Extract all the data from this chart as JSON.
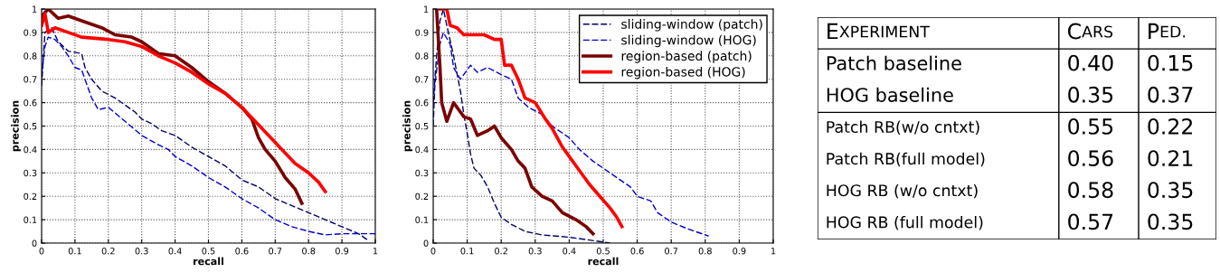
{
  "chart_data": [
    {
      "type": "line",
      "xlabel": "recall",
      "ylabel": "precision",
      "xlim": [
        0,
        1
      ],
      "ylim": [
        0,
        1
      ],
      "xticks": [
        0,
        0.1,
        0.2,
        0.3,
        0.4,
        0.5,
        0.6,
        0.7,
        0.8,
        0.9,
        1
      ],
      "yticks": [
        0,
        0.1,
        0.2,
        0.3,
        0.4,
        0.5,
        0.6,
        0.7,
        0.8,
        0.9,
        1
      ],
      "grid": true,
      "legend": false,
      "series": [
        {
          "color": "#000066",
          "line_style": "dashed",
          "x": [
            0,
            0.01,
            0.03,
            0.05,
            0.08,
            0.12,
            0.13,
            0.15,
            0.18,
            0.22,
            0.25,
            0.28,
            0.3,
            0.33,
            0.36,
            0.4,
            0.45,
            0.5,
            0.55,
            0.6,
            0.65,
            0.7,
            0.75,
            0.8,
            0.85,
            0.9,
            0.95,
            0.98
          ],
          "values": [
            0.67,
            0.9,
            0.92,
            0.86,
            0.82,
            0.81,
            0.75,
            0.7,
            0.65,
            0.62,
            0.59,
            0.56,
            0.53,
            0.51,
            0.48,
            0.46,
            0.41,
            0.37,
            0.33,
            0.27,
            0.24,
            0.19,
            0.16,
            0.13,
            0.1,
            0.07,
            0.04,
            0.01
          ]
        },
        {
          "color": "#0000cc",
          "line_style": "dashed",
          "x": [
            0,
            0.01,
            0.02,
            0.04,
            0.06,
            0.08,
            0.1,
            0.12,
            0.13,
            0.15,
            0.17,
            0.2,
            0.25,
            0.3,
            0.35,
            0.38,
            0.4,
            0.45,
            0.5,
            0.55,
            0.6,
            0.65,
            0.7,
            0.75,
            0.8,
            0.85,
            0.9,
            0.95,
            1
          ],
          "values": [
            0.72,
            0.84,
            0.88,
            0.87,
            0.84,
            0.8,
            0.75,
            0.74,
            0.7,
            0.62,
            0.57,
            0.58,
            0.52,
            0.46,
            0.42,
            0.4,
            0.37,
            0.33,
            0.28,
            0.24,
            0.19,
            0.15,
            0.1,
            0.07,
            0.05,
            0.035,
            0.04,
            0.04,
            0.04
          ]
        },
        {
          "color": "#7a0000",
          "line_style": "solid",
          "x": [
            0,
            0.02,
            0.05,
            0.08,
            0.12,
            0.18,
            0.22,
            0.27,
            0.3,
            0.35,
            0.4,
            0.45,
            0.5,
            0.55,
            0.6,
            0.63,
            0.65,
            0.67,
            0.7,
            0.73,
            0.76,
            0.78
          ],
          "values": [
            0.97,
            1.0,
            0.96,
            0.97,
            0.95,
            0.92,
            0.89,
            0.88,
            0.86,
            0.81,
            0.8,
            0.75,
            0.69,
            0.64,
            0.58,
            0.53,
            0.45,
            0.4,
            0.35,
            0.28,
            0.23,
            0.17
          ]
        },
        {
          "color": "#ff0000",
          "line_style": "solid",
          "x": [
            0,
            0.01,
            0.02,
            0.04,
            0.08,
            0.12,
            0.2,
            0.25,
            0.3,
            0.35,
            0.4,
            0.45,
            0.5,
            0.55,
            0.6,
            0.64,
            0.68,
            0.72,
            0.76,
            0.8,
            0.83,
            0.85
          ],
          "values": [
            0.93,
            0.98,
            0.9,
            0.92,
            0.9,
            0.88,
            0.87,
            0.86,
            0.84,
            0.8,
            0.77,
            0.73,
            0.68,
            0.64,
            0.58,
            0.52,
            0.46,
            0.4,
            0.34,
            0.3,
            0.26,
            0.22
          ]
        }
      ]
    },
    {
      "type": "line",
      "xlabel": "recall",
      "ylabel": "precision",
      "xlim": [
        0,
        1
      ],
      "ylim": [
        0,
        1
      ],
      "xticks": [
        0,
        0.1,
        0.2,
        0.3,
        0.4,
        0.5,
        0.6,
        0.7,
        0.8,
        0.9,
        1
      ],
      "yticks": [
        0,
        0.1,
        0.2,
        0.3,
        0.4,
        0.5,
        0.6,
        0.7,
        0.8,
        0.9,
        1
      ],
      "grid": true,
      "legend": "top right",
      "series": [
        {
          "name": "sliding-window (patch)",
          "color": "#000066",
          "line_style": "dashed",
          "x": [
            0,
            0.01,
            0.02,
            0.03,
            0.04,
            0.06,
            0.08,
            0.09,
            0.1,
            0.11,
            0.12,
            0.14,
            0.16,
            0.18,
            0.2,
            0.23,
            0.27,
            0.32,
            0.4,
            0.45,
            0.52
          ],
          "values": [
            0.6,
            0.8,
            0.95,
            1.0,
            0.93,
            0.8,
            0.65,
            0.55,
            0.47,
            0.38,
            0.32,
            0.29,
            0.24,
            0.17,
            0.11,
            0.08,
            0.05,
            0.035,
            0.025,
            0.015,
            0.0
          ]
        },
        {
          "name": "sliding-window (HOG)",
          "color": "#0000cc",
          "line_style": "dashed",
          "x": [
            0,
            0.005,
            0.02,
            0.03,
            0.05,
            0.06,
            0.08,
            0.11,
            0.13,
            0.16,
            0.2,
            0.23,
            0.25,
            0.28,
            0.32,
            0.35,
            0.4,
            0.43,
            0.47,
            0.5,
            0.55,
            0.58,
            0.6,
            0.64,
            0.66,
            0.7,
            0.75,
            0.81
          ],
          "values": [
            0.5,
            0.68,
            0.85,
            0.9,
            0.85,
            0.75,
            0.7,
            0.76,
            0.73,
            0.75,
            0.72,
            0.7,
            0.62,
            0.58,
            0.55,
            0.5,
            0.45,
            0.4,
            0.35,
            0.32,
            0.27,
            0.24,
            0.2,
            0.18,
            0.13,
            0.09,
            0.06,
            0.03
          ]
        },
        {
          "name": "region-based (patch)",
          "color": "#7a0000",
          "line_style": "solid",
          "x": [
            0.01,
            0.02,
            0.025,
            0.04,
            0.06,
            0.09,
            0.11,
            0.13,
            0.16,
            0.18,
            0.2,
            0.23,
            0.25,
            0.27,
            0.29,
            0.32,
            0.35,
            0.38,
            0.42,
            0.45,
            0.47
          ],
          "values": [
            1.0,
            0.75,
            0.6,
            0.52,
            0.6,
            0.54,
            0.53,
            0.46,
            0.48,
            0.5,
            0.45,
            0.4,
            0.35,
            0.32,
            0.24,
            0.2,
            0.18,
            0.13,
            0.1,
            0.07,
            0.04
          ]
        },
        {
          "name": "region-based (HOG)",
          "color": "#ff0000",
          "line_style": "solid",
          "x": [
            0.02,
            0.04,
            0.05,
            0.07,
            0.09,
            0.12,
            0.15,
            0.18,
            0.2,
            0.21,
            0.23,
            0.25,
            0.27,
            0.3,
            0.33,
            0.35,
            0.38,
            0.4,
            0.43,
            0.46,
            0.49,
            0.52,
            0.54,
            0.555
          ],
          "values": [
            1.0,
            1.0,
            0.93,
            0.92,
            0.89,
            0.89,
            0.89,
            0.87,
            0.87,
            0.76,
            0.76,
            0.7,
            0.62,
            0.6,
            0.53,
            0.49,
            0.41,
            0.37,
            0.31,
            0.25,
            0.2,
            0.15,
            0.11,
            0.07
          ]
        }
      ]
    },
    {
      "type": "other",
      "xlabel": "EXPERIMENT",
      "categories": [
        "Patch baseline",
        "HOG baseline",
        "Patch RB(w/o cntxt)",
        "Patch RB(full model)",
        "HOG RB (w/o cntxt)",
        "HOG RB (full model)"
      ],
      "series": [
        {
          "name": "CARS",
          "values": [
            0.4,
            0.35,
            0.55,
            0.56,
            0.58,
            0.57
          ],
          "value_labels": [
            "0.40",
            "0.35",
            "0.55",
            "0.56",
            "0.58",
            "0.57"
          ]
        },
        {
          "name": "PED.",
          "values": [
            0.15,
            0.37,
            0.22,
            0.21,
            0.35,
            0.35
          ],
          "value_labels": [
            "0.15",
            "0.37",
            "0.22",
            "0.21",
            "0.35",
            "0.35"
          ]
        }
      ]
    }
  ]
}
